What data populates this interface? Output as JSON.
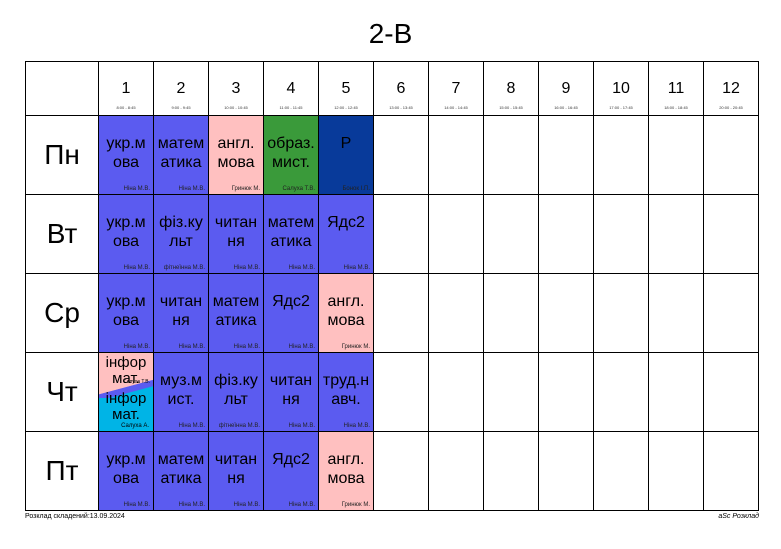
{
  "title": "2-В",
  "periods": [
    {
      "n": "1",
      "time": "8:00 - 8:45"
    },
    {
      "n": "2",
      "time": "9:00 - 9:45"
    },
    {
      "n": "3",
      "time": "10:00 - 10:45"
    },
    {
      "n": "4",
      "time": "11:00 - 11:45"
    },
    {
      "n": "5",
      "time": "12:00 - 12:45"
    },
    {
      "n": "6",
      "time": "13:00 - 13:45"
    },
    {
      "n": "7",
      "time": "14:00 - 14:45"
    },
    {
      "n": "8",
      "time": "15:00 - 15:45"
    },
    {
      "n": "9",
      "time": "16:00 - 16:45"
    },
    {
      "n": "10",
      "time": "17:00 - 17:45"
    },
    {
      "n": "11",
      "time": "18:00 - 18:45"
    },
    {
      "n": "12",
      "time": "20:00 - 20:45"
    }
  ],
  "days": [
    {
      "name": "Пн",
      "lessons": [
        {
          "subject": "укр.м ова",
          "teacher": "Ніна М.В.",
          "color": "blue"
        },
        {
          "subject": "матем атика",
          "teacher": "Ніна М.В.",
          "color": "blue"
        },
        {
          "subject": "англ. мова",
          "teacher": "Гринюк М.",
          "color": "pink"
        },
        {
          "subject": "образ. мист.",
          "teacher": "Салуха Т.В.",
          "color": "green"
        },
        {
          "subject": "Р",
          "teacher": "Бонок І.П.",
          "color": "navy"
        }
      ]
    },
    {
      "name": "Вт",
      "lessons": [
        {
          "subject": "укр.м ова",
          "teacher": "Ніна М.В.",
          "color": "blue"
        },
        {
          "subject": "фіз.ку льт",
          "teacher": "фітнеїнна М.В.",
          "color": "blue"
        },
        {
          "subject": "читан ня",
          "teacher": "Ніна М.В.",
          "color": "blue"
        },
        {
          "subject": "матем атика",
          "teacher": "Ніна М.В.",
          "color": "blue"
        },
        {
          "subject": "Ядс2",
          "teacher": "Ніна М.В.",
          "color": "blue"
        }
      ]
    },
    {
      "name": "Ср",
      "lessons": [
        {
          "subject": "укр.м ова",
          "teacher": "Ніна М.В.",
          "color": "blue"
        },
        {
          "subject": "читан ня",
          "teacher": "Ніна М.В.",
          "color": "blue"
        },
        {
          "subject": "матем атика",
          "teacher": "Ніна М.В.",
          "color": "blue"
        },
        {
          "subject": "Ядс2",
          "teacher": "Ніна М.В.",
          "color": "blue"
        },
        {
          "subject": "англ. мова",
          "teacher": "Гринюк М.",
          "color": "pink"
        }
      ]
    },
    {
      "name": "Чт",
      "lessons": [
        {
          "split": true,
          "subject1": "інфор мат.",
          "teacher1": "Салуха Т.В.",
          "subject2": "інфор мат.",
          "teacher2": "Салуха А."
        },
        {
          "subject": "муз.м ист.",
          "teacher": "Ніна М.В.",
          "color": "blue"
        },
        {
          "subject": "фіз.ку льт",
          "teacher": "фітнеїнна М.В.",
          "color": "blue"
        },
        {
          "subject": "читан ня",
          "teacher": "Ніна М.В.",
          "color": "blue"
        },
        {
          "subject": "труд.н авч.",
          "teacher": "Ніна М.В.",
          "color": "blue"
        }
      ]
    },
    {
      "name": "Пт",
      "lessons": [
        {
          "subject": "укр.м ова",
          "teacher": "Ніна М.В.",
          "color": "blue"
        },
        {
          "subject": "матем атика",
          "teacher": "Ніна М.В.",
          "color": "blue"
        },
        {
          "subject": "читан ня",
          "teacher": "Ніна М.В.",
          "color": "blue"
        },
        {
          "subject": "Ядс2",
          "teacher": "Ніна М.В.",
          "color": "blue"
        },
        {
          "subject": "англ. мова",
          "teacher": "Гринюк М.",
          "color": "pink"
        }
      ]
    }
  ],
  "footer": {
    "left": "Розклад складений:13.09.2024",
    "right": "aSc Розклад"
  }
}
